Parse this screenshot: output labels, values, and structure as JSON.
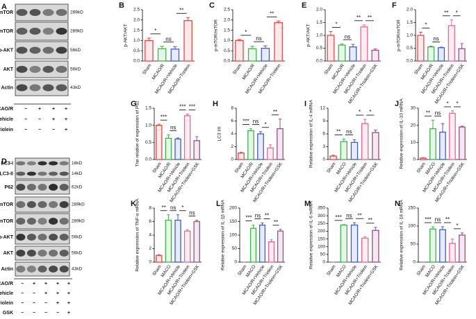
{
  "blots": [
    {
      "panel": "A",
      "rows": [
        {
          "label": "p-mTOR",
          "kd": "289kD"
        },
        {
          "label": "mTOR",
          "kd": "289kD"
        },
        {
          "label": "p-AKT",
          "kd": "56kD"
        },
        {
          "label": "AKT",
          "kd": "56kD"
        },
        {
          "label": "Actin",
          "kd": "43kD"
        }
      ],
      "treatments": [
        {
          "label": "MCAO/R",
          "signs": [
            "−",
            "+",
            "+",
            "+"
          ]
        },
        {
          "label": "Vehicle",
          "signs": [
            "−",
            "−",
            "+",
            "+"
          ]
        },
        {
          "label": "Triolein",
          "signs": [
            "−",
            "−",
            "−",
            "+"
          ]
        }
      ]
    },
    {
      "panel": "D",
      "rows": [
        {
          "label": "LC3-I",
          "kd": "16kD"
        },
        {
          "label": "LC3-II",
          "kd": "14kD"
        },
        {
          "label": "P62",
          "kd": "62kD"
        },
        {
          "label": "p-mTOR",
          "kd": "289kD"
        },
        {
          "label": "mTOR",
          "kd": "289kD"
        },
        {
          "label": "p-AKT",
          "kd": "56kD"
        },
        {
          "label": "AKT",
          "kd": "56kD"
        },
        {
          "label": "Actin",
          "kd": "43kD"
        }
      ],
      "treatments": [
        {
          "label": "MCAO/R",
          "signs": [
            "−",
            "+",
            "+",
            "+",
            "+"
          ]
        },
        {
          "label": "Vehicle",
          "signs": [
            "−",
            "−",
            "+",
            "+",
            "+"
          ]
        },
        {
          "label": "Triolein",
          "signs": [
            "−",
            "−",
            "−",
            "+",
            "+"
          ]
        },
        {
          "label": "GSK",
          "signs": [
            "−",
            "−",
            "−",
            "−",
            "+"
          ]
        }
      ]
    }
  ],
  "chart_data": [
    {
      "type": "bar",
      "panel": "B",
      "ylabel": "p-AKT/AKT",
      "categories": [
        "Sham",
        "MCAO/R",
        "MCAO/R+Vehicle",
        "MCAO/R+Triolein"
      ],
      "values": [
        1.0,
        0.6,
        0.58,
        1.97
      ],
      "errors": [
        0.12,
        0.12,
        0.12,
        0.15
      ],
      "colors": [
        "#e8474a",
        "#3cb44b",
        "#3b5bdb",
        "#e8474a"
      ],
      "ylim": [
        0,
        2.5
      ],
      "yticks": [
        {
          "value": 0,
          "label": "0.0"
        },
        0.5,
        {
          "value": 1,
          "label": "1.0"
        },
        1.5,
        {
          "value": 2,
          "label": "2.0"
        },
        2.5
      ],
      "annotations": [
        "*",
        "ns",
        "**"
      ]
    },
    {
      "type": "bar",
      "panel": "C",
      "ylabel": "p-mTOR/mTOR",
      "categories": [
        "Sham",
        "MCAO/R",
        "MCAO/R+Vehicle",
        "MCAO/R+Triolein"
      ],
      "values": [
        1.0,
        0.6,
        0.62,
        1.87
      ],
      "errors": [
        0.05,
        0.12,
        0.12,
        0.08
      ],
      "colors": [
        "#e8474a",
        "#3cb44b",
        "#3b5bdb",
        "#e8474a"
      ],
      "ylim": [
        0,
        2.5
      ],
      "yticks": [
        {
          "value": 0,
          "label": "0.0"
        },
        0.5,
        {
          "value": 1,
          "label": "1.0"
        },
        1.5,
        {
          "value": 2,
          "label": "2.0"
        },
        2.5
      ],
      "annotations": [
        "*",
        "ns",
        "**"
      ]
    },
    {
      "type": "bar",
      "panel": "E",
      "ylabel": "p-AKT/AKT",
      "categories": [
        "Sham",
        "MCAO/R",
        "MCAO/R+Vehicle",
        "MCAO/R+Triolein",
        "MCAO/R+Triolein+GSK"
      ],
      "values": [
        1.0,
        0.62,
        0.55,
        1.33,
        0.42
      ],
      "errors": [
        0.15,
        0.05,
        0.1,
        0.08,
        0.05
      ],
      "colors": [
        "#e8474a",
        "#3cb44b",
        "#3b5bdb",
        "#f06292",
        "#9c4d8a"
      ],
      "ylim": [
        0,
        2
      ],
      "yticks": [
        {
          "value": 0,
          "label": "0.0"
        },
        0.5,
        {
          "value": 1,
          "label": "1.0"
        },
        1.5,
        {
          "value": 2,
          "label": "2.0"
        }
      ],
      "annotations": [
        "*",
        "ns",
        "**",
        "**"
      ]
    },
    {
      "type": "bar",
      "panel": "F",
      "ylabel": "p-mTOR/mTOR",
      "categories": [
        "Sham",
        "MCAO/R",
        "MCAO/R+Vehicle",
        "MCAO/R+Triolein",
        "MCAO/R+Triolein+GSK"
      ],
      "values": [
        1.0,
        0.55,
        0.52,
        1.38,
        0.48
      ],
      "errors": [
        0.12,
        0.03,
        0.02,
        0.22,
        0.2
      ],
      "colors": [
        "#e8474a",
        "#3cb44b",
        "#3b5bdb",
        "#f06292",
        "#9c4d8a"
      ],
      "ylim": [
        0,
        2
      ],
      "yticks": [
        {
          "value": 0,
          "label": "0.0"
        },
        0.5,
        {
          "value": 1,
          "label": "1.0"
        },
        1.5,
        {
          "value": 2,
          "label": "2.0"
        }
      ],
      "annotations": [
        "*",
        "ns",
        "**",
        "*"
      ]
    },
    {
      "type": "bar",
      "panel": "G",
      "ylabel": "The relative of expression of P62",
      "categories": [
        "Sham",
        "MCAO/R",
        "MCAO/R+Vehicle",
        "MCAO/R+Triolein",
        "MCAO/R+Triolein+GSK"
      ],
      "values": [
        1.0,
        0.62,
        0.6,
        1.28,
        0.55
      ],
      "errors": [
        0.03,
        0.1,
        0.03,
        0.05,
        0.12
      ],
      "colors": [
        "#e8474a",
        "#3cb44b",
        "#3b5bdb",
        "#f06292",
        "#9c4d8a"
      ],
      "ylim": [
        0,
        1.5
      ],
      "yticks": [
        {
          "value": 0,
          "label": "0.0"
        },
        0.5,
        {
          "value": 1,
          "label": "1.0"
        },
        1.5
      ],
      "annotations": [
        "***",
        "ns",
        "***",
        "***"
      ]
    },
    {
      "type": "bar",
      "panel": "H",
      "ylabel": "LC3 I/II",
      "categories": [
        "Sham",
        "MCAO/R",
        "MCAO/R+Vehicle",
        "MCAO/R+Triolein",
        "MCAO/R+Triolein+GSK"
      ],
      "values": [
        1.0,
        4.5,
        4.0,
        1.8,
        4.8
      ],
      "errors": [
        0.15,
        0.3,
        0.35,
        0.5,
        1.5
      ],
      "colors": [
        "#e8474a",
        "#3cb44b",
        "#3b5bdb",
        "#f06292",
        "#9c4d8a"
      ],
      "ylim": [
        0,
        8
      ],
      "yticks": [
        0,
        2,
        4,
        6,
        8
      ],
      "annotations": [
        "***",
        "ns",
        "*",
        "**"
      ]
    },
    {
      "type": "bar",
      "panel": "I",
      "ylabel": "Relative expression of IL-4 mRNA",
      "categories": [
        "Sham",
        "MACO",
        "MCAO/R+Vehicle",
        "MCAO/R+Triolein",
        "MCAO/R+Triolein+GSK"
      ],
      "values": [
        0.8,
        4.2,
        4.0,
        8.4,
        6.3
      ],
      "errors": [
        0.2,
        0.6,
        0.6,
        1.0,
        0.6
      ],
      "colors": [
        "#e8474a",
        "#3cb44b",
        "#3b5bdb",
        "#f06292",
        "#9c4d8a"
      ],
      "ylim": [
        0,
        12
      ],
      "yticks": [
        0,
        3,
        6,
        9,
        12
      ],
      "annotations": [
        "**",
        "ns",
        "*",
        "*"
      ]
    },
    {
      "type": "bar",
      "panel": "J",
      "ylabel": "Relative expression of IL-10 mRNA",
      "categories": [
        "Sham",
        "MACO",
        "MCAO/R+Vehicle",
        "MCAO/R+Triolein",
        "MCAO/R+Triolein+GSK"
      ],
      "values": [
        0.8,
        18,
        16,
        27,
        19
      ],
      "errors": [
        0.3,
        5,
        5,
        1.5,
        0.5
      ],
      "colors": [
        "#e8474a",
        "#3cb44b",
        "#3b5bdb",
        "#f06292",
        "#9c4d8a"
      ],
      "ylim": [
        0,
        30
      ],
      "yticks": [
        0,
        10,
        20,
        30
      ],
      "annotations": [
        "**",
        "ns",
        "*",
        "*"
      ]
    },
    {
      "type": "bar",
      "panel": "K",
      "ylabel": "Relative expression of TNF-α mRNA",
      "categories": [
        "Sham",
        "MACO",
        "MCAO/R+Vehicle",
        "MCAO/R+Triolein",
        "MCAO/R+Triolein+GSK"
      ],
      "values": [
        1.0,
        6.2,
        6.2,
        4.6,
        6.0
      ],
      "errors": [
        0.1,
        0.8,
        0.8,
        0.2,
        0.2
      ],
      "colors": [
        "#e8474a",
        "#3cb44b",
        "#3b5bdb",
        "#f06292",
        "#9c4d8a"
      ],
      "ylim": [
        0,
        8
      ],
      "yticks": [
        0,
        2,
        4,
        6,
        8
      ],
      "annotations": [
        "**",
        "ns",
        "*",
        "ns"
      ]
    },
    {
      "type": "bar",
      "panel": "L",
      "ylabel": "Relative expression of IL-1β mRNA",
      "categories": [
        "Sham",
        "MACO",
        "MCAO/R+Vehicle",
        "MCAO/R+Triolein",
        "MCAO/R+Triolein+GSK"
      ],
      "values": [
        0,
        125,
        137,
        75,
        115
      ],
      "errors": [
        0,
        12,
        8,
        8,
        6
      ],
      "colors": [
        "#e8474a",
        "#3cb44b",
        "#3b5bdb",
        "#f06292",
        "#9c4d8a"
      ],
      "ylim": [
        0,
        200
      ],
      "yticks": [
        0,
        50,
        100,
        150,
        200
      ],
      "annotations": [
        "***",
        "ns",
        "**",
        "**"
      ]
    },
    {
      "type": "bar",
      "panel": "M",
      "ylabel": "Relative expression of IL-6 mRNA",
      "categories": [
        "Sham",
        "MACO",
        "MCAO/R+Vehicle",
        "MCAO/R+Triolein",
        "MCAO/R+Triolein+GSK"
      ],
      "values": [
        0,
        240,
        240,
        155,
        205
      ],
      "errors": [
        0,
        3,
        15,
        10,
        20
      ],
      "colors": [
        "#e8474a",
        "#3cb44b",
        "#3b5bdb",
        "#f06292",
        "#9c4d8a"
      ],
      "ylim": [
        0,
        350
      ],
      "yticks": [
        0,
        50,
        100,
        150,
        200,
        250,
        300,
        350
      ],
      "annotations": [
        "***",
        "ns",
        "**",
        "**"
      ]
    },
    {
      "type": "bar",
      "panel": "N",
      "ylabel": "Relative expression of IL-18 mRNA",
      "categories": [
        "Sham",
        "MACO",
        "MCAO/R+Vehicle",
        "MCAO/R+Triolein",
        "MCAO/R+Triolein+GSK"
      ],
      "values": [
        0,
        92,
        90,
        52,
        75
      ],
      "errors": [
        0,
        6,
        8,
        12,
        6
      ],
      "colors": [
        "#e8474a",
        "#3cb44b",
        "#3b5bdb",
        "#f06292",
        "#9c4d8a"
      ],
      "ylim": [
        0,
        150
      ],
      "yticks": [
        0,
        50,
        100,
        150
      ],
      "annotations": [
        "***",
        "ns",
        "**",
        "*"
      ]
    }
  ]
}
